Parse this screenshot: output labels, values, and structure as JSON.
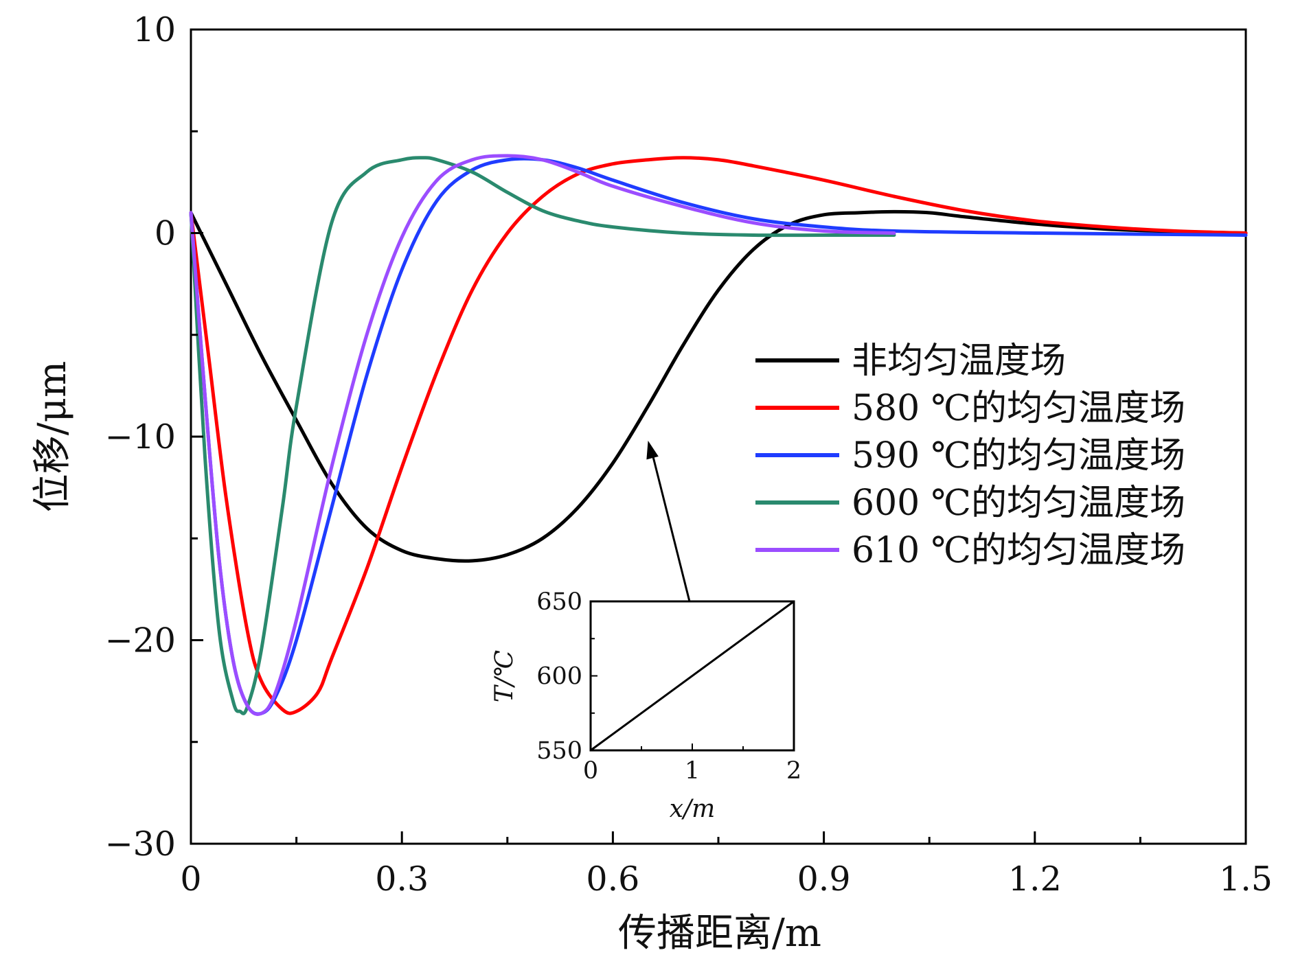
{
  "chart_data": [
    {
      "type": "line",
      "title": "",
      "xlabel": "传播距离/m",
      "ylabel": "位移/μm",
      "xlim": [
        0,
        1.5
      ],
      "ylim": [
        -30,
        10
      ],
      "xticks": [
        0,
        0.3,
        0.6,
        0.9,
        1.2,
        1.5
      ],
      "xtick_labels": [
        "0",
        "0.3",
        "0.6",
        "0.9",
        "1.2",
        "1.5"
      ],
      "yticks": [
        10,
        0,
        -10,
        -20,
        -30
      ],
      "ytick_labels": [
        "10",
        "0",
        "−10",
        "−20",
        "−30"
      ],
      "grid": false,
      "legend_position": "right-middle",
      "series": [
        {
          "name": "非均匀温度场",
          "color": "#000000",
          "x": [
            0,
            0.05,
            0.1,
            0.15,
            0.2,
            0.25,
            0.3,
            0.35,
            0.4,
            0.45,
            0.5,
            0.55,
            0.6,
            0.65,
            0.7,
            0.75,
            0.8,
            0.85,
            0.9,
            0.95,
            1.0,
            1.05,
            1.1,
            1.2,
            1.3,
            1.4,
            1.5
          ],
          "y": [
            1.0,
            -2.5,
            -6.0,
            -9.2,
            -12.3,
            -14.5,
            -15.6,
            -16.0,
            -16.1,
            -15.8,
            -15.0,
            -13.5,
            -11.3,
            -8.5,
            -5.5,
            -2.8,
            -0.8,
            0.4,
            0.9,
            1.0,
            1.05,
            1.0,
            0.8,
            0.45,
            0.2,
            0.08,
            0.0
          ]
        },
        {
          "name": "580 ℃的均匀温度场",
          "color": "#ff0000",
          "x": [
            0,
            0.025,
            0.05,
            0.08,
            0.1,
            0.13,
            0.15,
            0.18,
            0.2,
            0.25,
            0.3,
            0.35,
            0.4,
            0.45,
            0.5,
            0.55,
            0.6,
            0.65,
            0.7,
            0.75,
            0.8,
            0.9,
            1.0,
            1.1,
            1.2,
            1.3,
            1.4,
            1.5
          ],
          "y": [
            1.0,
            -6.0,
            -13.0,
            -19.5,
            -22.0,
            -23.4,
            -23.5,
            -22.6,
            -20.9,
            -16.5,
            -11.5,
            -6.8,
            -2.8,
            0.0,
            1.8,
            2.9,
            3.4,
            3.6,
            3.7,
            3.6,
            3.3,
            2.6,
            1.8,
            1.1,
            0.6,
            0.3,
            0.1,
            0.0
          ]
        },
        {
          "name": "590 ℃的均匀温度场",
          "color": "#1f3cff",
          "x": [
            0,
            0.02,
            0.04,
            0.06,
            0.08,
            0.1,
            0.12,
            0.15,
            0.2,
            0.25,
            0.3,
            0.35,
            0.4,
            0.45,
            0.5,
            0.55,
            0.6,
            0.7,
            0.8,
            0.9,
            1.0,
            1.2,
            1.5
          ],
          "y": [
            1.0,
            -8.0,
            -16.0,
            -21.0,
            -23.2,
            -23.6,
            -22.8,
            -20.0,
            -13.5,
            -7.0,
            -1.8,
            1.6,
            3.1,
            3.6,
            3.6,
            3.2,
            2.6,
            1.5,
            0.7,
            0.3,
            0.1,
            0.0,
            -0.1
          ]
        },
        {
          "name": "600 ℃的均匀温度场",
          "color": "#2a8a6e",
          "x": [
            0,
            0.02,
            0.04,
            0.06,
            0.07,
            0.08,
            0.1,
            0.13,
            0.15,
            0.2,
            0.25,
            0.3,
            0.33,
            0.35,
            0.4,
            0.45,
            0.5,
            0.55,
            0.6,
            0.7,
            0.8,
            0.9,
            1.0
          ],
          "y": [
            1.0,
            -11.0,
            -19.5,
            -23.0,
            -23.5,
            -23.3,
            -20.5,
            -13.5,
            -8.5,
            0.5,
            3.0,
            3.6,
            3.7,
            3.6,
            3.0,
            2.0,
            1.1,
            0.6,
            0.3,
            0.0,
            -0.1,
            -0.1,
            -0.1
          ]
        },
        {
          "name": "610 ℃的均匀温度场",
          "color": "#9b4dff",
          "x": [
            0,
            0.02,
            0.04,
            0.06,
            0.08,
            0.1,
            0.12,
            0.15,
            0.2,
            0.25,
            0.3,
            0.35,
            0.4,
            0.45,
            0.5,
            0.55,
            0.6,
            0.7,
            0.8,
            0.9,
            1.0
          ],
          "y": [
            1.0,
            -8.0,
            -16.0,
            -21.0,
            -23.2,
            -23.6,
            -22.6,
            -19.0,
            -11.5,
            -5.0,
            -0.2,
            2.6,
            3.6,
            3.8,
            3.6,
            3.0,
            2.3,
            1.3,
            0.5,
            0.1,
            0.0
          ]
        }
      ],
      "annotations": [
        {
          "type": "arrow",
          "from_inset": true,
          "to": {
            "x": 0.65,
            "y": -10.2
          }
        }
      ]
    },
    {
      "type": "line",
      "title": "",
      "xlabel": "x/m",
      "ylabel": "T/℃",
      "xlim": [
        0,
        2
      ],
      "ylim": [
        550,
        650
      ],
      "xtick_labels": [
        "0",
        "1",
        "2"
      ],
      "ytick_labels": [
        "650",
        "600",
        "550"
      ],
      "series": [
        {
          "name": "T",
          "color": "#000000",
          "x": [
            0,
            2
          ],
          "y": [
            550,
            650
          ]
        }
      ]
    }
  ]
}
